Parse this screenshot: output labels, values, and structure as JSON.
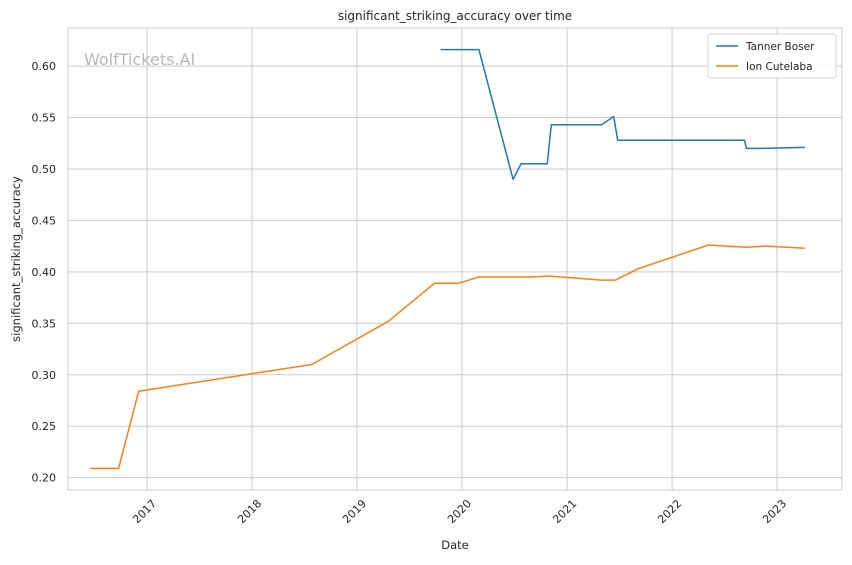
{
  "chart_data": {
    "type": "line",
    "title": "significant_striking_accuracy over time",
    "xlabel": "Date",
    "ylabel": "significant_striking_accuracy",
    "watermark": "WolfTickets.AI",
    "xlim": [
      "2016-04-01",
      "2023-08-15"
    ],
    "ylim": [
      0.188,
      0.637
    ],
    "x_ticks": [
      {
        "date": "2017-01-01",
        "label": "2017"
      },
      {
        "date": "2018-01-01",
        "label": "2018"
      },
      {
        "date": "2019-01-01",
        "label": "2019"
      },
      {
        "date": "2020-01-01",
        "label": "2020"
      },
      {
        "date": "2021-01-01",
        "label": "2021"
      },
      {
        "date": "2022-01-01",
        "label": "2022"
      },
      {
        "date": "2023-01-01",
        "label": "2023"
      }
    ],
    "y_ticks": [
      {
        "value": 0.2,
        "label": "0.20"
      },
      {
        "value": 0.25,
        "label": "0.25"
      },
      {
        "value": 0.3,
        "label": "0.30"
      },
      {
        "value": 0.35,
        "label": "0.35"
      },
      {
        "value": 0.4,
        "label": "0.40"
      },
      {
        "value": 0.45,
        "label": "0.45"
      },
      {
        "value": 0.5,
        "label": "0.50"
      },
      {
        "value": 0.55,
        "label": "0.55"
      },
      {
        "value": 0.6,
        "label": "0.60"
      }
    ],
    "grid": true,
    "legend_position": "top-right",
    "series": [
      {
        "name": "Tanner Boser",
        "color": "#1f77b4",
        "points": [
          {
            "x": "2019-10-19",
            "y": 0.616
          },
          {
            "x": "2020-02-29",
            "y": 0.616
          },
          {
            "x": "2020-06-27",
            "y": 0.49
          },
          {
            "x": "2020-07-25",
            "y": 0.505
          },
          {
            "x": "2020-10-24",
            "y": 0.505
          },
          {
            "x": "2020-11-07",
            "y": 0.543
          },
          {
            "x": "2021-05-01",
            "y": 0.543
          },
          {
            "x": "2021-06-12",
            "y": 0.551
          },
          {
            "x": "2021-06-26",
            "y": 0.528
          },
          {
            "x": "2022-09-10",
            "y": 0.528
          },
          {
            "x": "2022-09-17",
            "y": 0.52
          },
          {
            "x": "2022-11-05",
            "y": 0.52
          },
          {
            "x": "2023-04-08",
            "y": 0.521
          }
        ]
      },
      {
        "name": "Ion Cutelaba",
        "color": "#ff7f0e",
        "points": [
          {
            "x": "2016-06-18",
            "y": 0.209
          },
          {
            "x": "2016-09-24",
            "y": 0.209
          },
          {
            "x": "2016-12-03",
            "y": 0.284
          },
          {
            "x": "2018-07-28",
            "y": 0.31
          },
          {
            "x": "2019-04-20",
            "y": 0.352
          },
          {
            "x": "2019-09-28",
            "y": 0.389
          },
          {
            "x": "2019-12-21",
            "y": 0.389
          },
          {
            "x": "2020-02-29",
            "y": 0.395
          },
          {
            "x": "2020-08-29",
            "y": 0.395
          },
          {
            "x": "2020-10-31",
            "y": 0.396
          },
          {
            "x": "2021-05-01",
            "y": 0.392
          },
          {
            "x": "2021-06-19",
            "y": 0.392
          },
          {
            "x": "2021-09-04",
            "y": 0.403
          },
          {
            "x": "2022-05-07",
            "y": 0.426
          },
          {
            "x": "2022-09-17",
            "y": 0.424
          },
          {
            "x": "2022-11-26",
            "y": 0.425
          },
          {
            "x": "2023-04-08",
            "y": 0.423
          }
        ]
      }
    ]
  }
}
